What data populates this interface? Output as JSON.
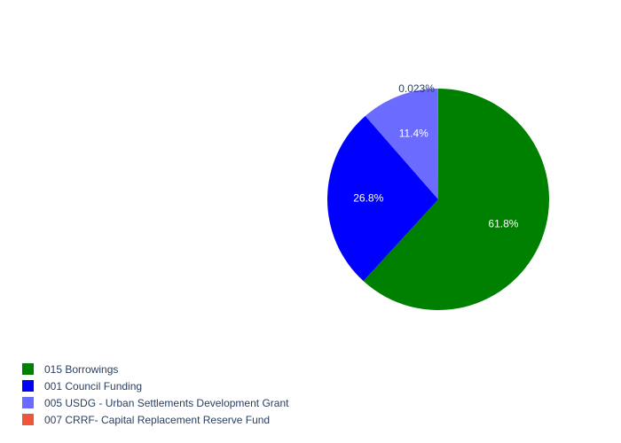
{
  "chart_data": {
    "type": "pie",
    "slices": [
      {
        "label": "015 Borrowings",
        "value": 61.8,
        "display": "61.8%",
        "color": "#008000",
        "label_inside": true
      },
      {
        "label": "001 Council Funding",
        "value": 26.8,
        "display": "26.8%",
        "color": "#0000ff",
        "label_inside": true
      },
      {
        "label": "005 USDG - Urban Settlements Development Grant",
        "value": 11.4,
        "display": "11.4%",
        "color": "#6b6bff",
        "label_inside": true
      },
      {
        "label": "007 CRRF- Capital Replacement Reserve Fund",
        "value": 0.023,
        "display": "0.023%",
        "color": "#ef553b",
        "label_inside": false
      }
    ],
    "legend_position": "bottom-left",
    "direction": "clockwise",
    "start": "top"
  }
}
